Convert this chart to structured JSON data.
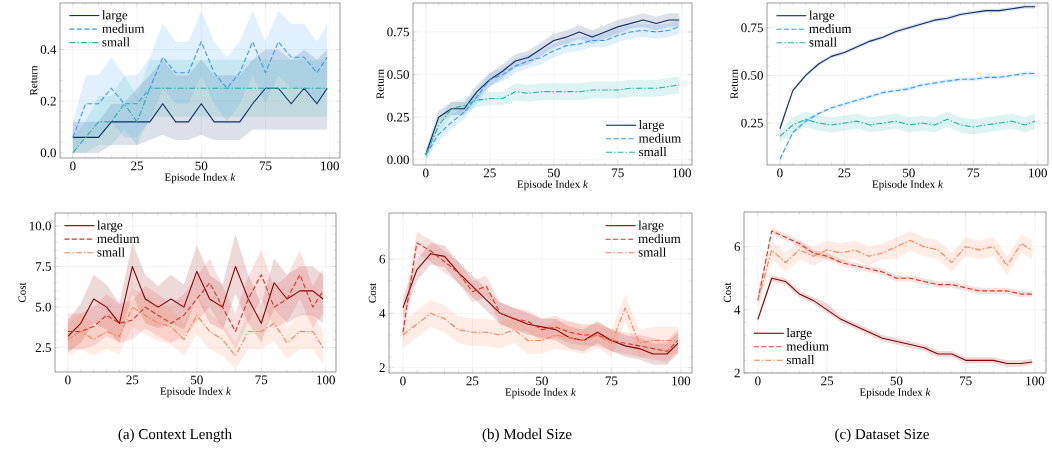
{
  "chart_data": [
    {
      "type": "line",
      "xlabel": "Episode Index *k*",
      "ylabel": "Return",
      "xlim": [
        -5,
        104
      ],
      "ylim": [
        -0.02,
        0.58
      ],
      "xticks": [
        0,
        25,
        50,
        75,
        100
      ],
      "yticks": [
        {
          "value": 0,
          "label": "0.0"
        },
        0.2,
        0.4
      ],
      "grid": true,
      "legend": "top left",
      "x": [
        0,
        5,
        10,
        15,
        20,
        25,
        30,
        35,
        40,
        45,
        50,
        55,
        60,
        65,
        70,
        75,
        80,
        85,
        90,
        95,
        99
      ],
      "series": [
        {
          "name": "large",
          "color": "#0d2f6b",
          "line_style": "solid",
          "values": [
            0.06,
            0.06,
            0.06,
            0.12,
            0.12,
            0.12,
            0.12,
            0.19,
            0.12,
            0.12,
            0.19,
            0.12,
            0.12,
            0.12,
            0.19,
            0.25,
            0.25,
            0.19,
            0.25,
            0.19,
            0.25
          ],
          "lower": [
            0,
            0,
            0,
            0.03,
            0.03,
            0.03,
            0.05,
            0.07,
            0.05,
            0.05,
            0.07,
            0.05,
            0.05,
            0.05,
            0.09,
            0.09,
            0.09,
            0.09,
            0.09,
            0.09,
            0.09
          ],
          "upper": [
            0.12,
            0.12,
            0.12,
            0.19,
            0.19,
            0.25,
            0.3,
            0.36,
            0.3,
            0.3,
            0.36,
            0.3,
            0.3,
            0.3,
            0.36,
            0.4,
            0.4,
            0.36,
            0.4,
            0.36,
            0.4
          ]
        },
        {
          "name": "medium",
          "color": "#3399ff",
          "line_style": "dashed",
          "values": [
            0.06,
            0.19,
            0.19,
            0.25,
            0.19,
            0.19,
            0.25,
            0.37,
            0.31,
            0.31,
            0.43,
            0.31,
            0.25,
            0.31,
            0.43,
            0.31,
            0.43,
            0.37,
            0.37,
            0.31,
            0.37
          ],
          "lower": [
            0,
            0.06,
            0.06,
            0.12,
            0.06,
            0.06,
            0.12,
            0.25,
            0.19,
            0.19,
            0.3,
            0.19,
            0.12,
            0.19,
            0.3,
            0.19,
            0.3,
            0.25,
            0.25,
            0.19,
            0.25
          ],
          "upper": [
            0.12,
            0.3,
            0.3,
            0.37,
            0.3,
            0.3,
            0.37,
            0.5,
            0.43,
            0.43,
            0.55,
            0.43,
            0.37,
            0.43,
            0.55,
            0.43,
            0.55,
            0.5,
            0.5,
            0.43,
            0.5
          ]
        },
        {
          "name": "small",
          "color": "#1fb5a8",
          "line_style": "dashdot",
          "values": [
            0,
            0.06,
            0.12,
            0.12,
            0.19,
            0.12,
            0.25,
            0.25,
            0.25,
            0.25,
            0.25,
            0.25,
            0.25,
            0.25,
            0.25,
            0.25,
            0.25,
            0.25,
            0.25,
            0.25,
            0.25
          ],
          "lower": [
            0,
            0,
            0.03,
            0.03,
            0.09,
            0.03,
            0.14,
            0.14,
            0.14,
            0.14,
            0.14,
            0.14,
            0.14,
            0.14,
            0.14,
            0.14,
            0.14,
            0.14,
            0.14,
            0.14,
            0.14
          ],
          "upper": [
            0.06,
            0.12,
            0.22,
            0.22,
            0.3,
            0.22,
            0.36,
            0.36,
            0.36,
            0.36,
            0.36,
            0.36,
            0.36,
            0.36,
            0.36,
            0.36,
            0.36,
            0.36,
            0.36,
            0.36,
            0.36
          ]
        }
      ]
    },
    {
      "type": "line",
      "xlabel": "Episode Index *k*",
      "ylabel": "Return",
      "xlim": [
        -5,
        104
      ],
      "ylim": [
        -0.03,
        0.92
      ],
      "xticks": [
        0,
        25,
        50,
        75,
        100
      ],
      "yticks": [
        {
          "value": 0,
          "label": "0.00"
        },
        0.25,
        {
          "value": 0.5,
          "label": "0.50"
        },
        0.75
      ],
      "grid": true,
      "legend": "bottom right",
      "x": [
        0,
        5,
        10,
        15,
        20,
        25,
        30,
        35,
        40,
        45,
        50,
        55,
        60,
        65,
        70,
        75,
        80,
        85,
        90,
        95,
        99
      ],
      "series": [
        {
          "name": "large",
          "color": "#0d2f6b",
          "line_style": "solid",
          "values": [
            0.03,
            0.25,
            0.3,
            0.3,
            0.4,
            0.47,
            0.52,
            0.58,
            0.6,
            0.65,
            0.7,
            0.72,
            0.75,
            0.72,
            0.75,
            0.78,
            0.8,
            0.82,
            0.8,
            0.82,
            0.82
          ],
          "lower": [
            0.0,
            0.21,
            0.26,
            0.26,
            0.36,
            0.43,
            0.48,
            0.54,
            0.56,
            0.61,
            0.66,
            0.68,
            0.71,
            0.68,
            0.71,
            0.74,
            0.77,
            0.78,
            0.76,
            0.78,
            0.78
          ],
          "upper": [
            0.06,
            0.29,
            0.34,
            0.34,
            0.44,
            0.51,
            0.56,
            0.62,
            0.64,
            0.69,
            0.74,
            0.76,
            0.79,
            0.76,
            0.79,
            0.82,
            0.84,
            0.86,
            0.84,
            0.86,
            0.86
          ]
        },
        {
          "name": "medium",
          "color": "#3399ff",
          "line_style": "dashed",
          "values": [
            0.03,
            0.15,
            0.22,
            0.28,
            0.37,
            0.47,
            0.5,
            0.55,
            0.58,
            0.6,
            0.64,
            0.67,
            0.68,
            0.7,
            0.7,
            0.73,
            0.75,
            0.76,
            0.75,
            0.76,
            0.78
          ],
          "lower": [
            0.0,
            0.11,
            0.18,
            0.24,
            0.33,
            0.43,
            0.46,
            0.51,
            0.54,
            0.56,
            0.6,
            0.63,
            0.64,
            0.66,
            0.66,
            0.69,
            0.71,
            0.72,
            0.71,
            0.72,
            0.74
          ],
          "upper": [
            0.06,
            0.19,
            0.26,
            0.32,
            0.41,
            0.51,
            0.54,
            0.59,
            0.62,
            0.64,
            0.68,
            0.71,
            0.72,
            0.74,
            0.74,
            0.77,
            0.79,
            0.8,
            0.79,
            0.8,
            0.82
          ]
        },
        {
          "name": "small",
          "color": "#1fb5a8",
          "line_style": "dashdot",
          "values": [
            0.03,
            0.2,
            0.3,
            0.32,
            0.35,
            0.36,
            0.36,
            0.4,
            0.39,
            0.4,
            0.4,
            0.4,
            0.4,
            0.41,
            0.41,
            0.41,
            0.42,
            0.42,
            0.42,
            0.43,
            0.44
          ],
          "lower": [
            0.0,
            0.16,
            0.26,
            0.28,
            0.31,
            0.32,
            0.32,
            0.35,
            0.34,
            0.35,
            0.35,
            0.35,
            0.35,
            0.36,
            0.36,
            0.36,
            0.37,
            0.37,
            0.37,
            0.38,
            0.39
          ],
          "upper": [
            0.06,
            0.24,
            0.34,
            0.36,
            0.39,
            0.4,
            0.4,
            0.45,
            0.44,
            0.45,
            0.45,
            0.45,
            0.45,
            0.46,
            0.46,
            0.46,
            0.47,
            0.47,
            0.47,
            0.48,
            0.49
          ]
        }
      ]
    },
    {
      "type": "line",
      "xlabel": "Episode Index *k*",
      "ylabel": "Return",
      "xlim": [
        -5,
        104
      ],
      "ylim": [
        0.03,
        0.88
      ],
      "xticks": [
        0,
        25,
        50,
        75,
        100
      ],
      "yticks": [
        0.25,
        {
          "value": 0.5,
          "label": "0.50"
        },
        0.75
      ],
      "grid": true,
      "legend": "top left",
      "x": [
        0,
        5,
        10,
        15,
        20,
        25,
        30,
        35,
        40,
        45,
        50,
        55,
        60,
        65,
        70,
        75,
        80,
        85,
        90,
        95,
        99
      ],
      "series": [
        {
          "name": "large",
          "color": "#0d2f6b",
          "line_style": "solid",
          "values": [
            0.22,
            0.42,
            0.5,
            0.56,
            0.6,
            0.62,
            0.65,
            0.68,
            0.7,
            0.73,
            0.75,
            0.77,
            0.79,
            0.8,
            0.82,
            0.83,
            0.84,
            0.84,
            0.85,
            0.86,
            0.86
          ],
          "lower": [
            0.2,
            0.41,
            0.49,
            0.55,
            0.59,
            0.61,
            0.64,
            0.67,
            0.69,
            0.72,
            0.74,
            0.76,
            0.78,
            0.79,
            0.81,
            0.82,
            0.83,
            0.83,
            0.84,
            0.85,
            0.85
          ],
          "upper": [
            0.24,
            0.43,
            0.51,
            0.57,
            0.61,
            0.63,
            0.66,
            0.69,
            0.71,
            0.74,
            0.76,
            0.78,
            0.8,
            0.81,
            0.83,
            0.84,
            0.85,
            0.85,
            0.86,
            0.87,
            0.87
          ]
        },
        {
          "name": "medium",
          "color": "#3399ff",
          "line_style": "dashed",
          "values": [
            0.06,
            0.2,
            0.26,
            0.3,
            0.33,
            0.35,
            0.37,
            0.39,
            0.41,
            0.42,
            0.43,
            0.45,
            0.46,
            0.47,
            0.48,
            0.48,
            0.49,
            0.49,
            0.5,
            0.51,
            0.51
          ],
          "lower": [
            0.05,
            0.19,
            0.25,
            0.29,
            0.32,
            0.34,
            0.36,
            0.38,
            0.4,
            0.41,
            0.42,
            0.44,
            0.45,
            0.46,
            0.47,
            0.47,
            0.48,
            0.48,
            0.49,
            0.5,
            0.5
          ],
          "upper": [
            0.07,
            0.21,
            0.27,
            0.31,
            0.34,
            0.36,
            0.38,
            0.4,
            0.42,
            0.43,
            0.44,
            0.46,
            0.47,
            0.48,
            0.49,
            0.49,
            0.5,
            0.5,
            0.51,
            0.52,
            0.52
          ]
        },
        {
          "name": "small",
          "color": "#1fb5a8",
          "line_style": "dashdot",
          "values": [
            0.18,
            0.24,
            0.27,
            0.25,
            0.24,
            0.25,
            0.26,
            0.24,
            0.25,
            0.26,
            0.24,
            0.25,
            0.24,
            0.27,
            0.24,
            0.23,
            0.24,
            0.25,
            0.26,
            0.24,
            0.26
          ],
          "lower": [
            0.15,
            0.2,
            0.23,
            0.21,
            0.2,
            0.21,
            0.22,
            0.2,
            0.21,
            0.22,
            0.2,
            0.21,
            0.2,
            0.23,
            0.2,
            0.19,
            0.2,
            0.21,
            0.22,
            0.2,
            0.22
          ],
          "upper": [
            0.21,
            0.28,
            0.31,
            0.29,
            0.28,
            0.29,
            0.3,
            0.28,
            0.29,
            0.3,
            0.28,
            0.29,
            0.28,
            0.31,
            0.28,
            0.27,
            0.28,
            0.29,
            0.3,
            0.28,
            0.3
          ]
        }
      ]
    },
    {
      "type": "line",
      "xlabel": "Episode Index *k*",
      "ylabel": "Cost",
      "xlim": [
        -5,
        104
      ],
      "ylim": [
        1.0,
        10.8
      ],
      "xticks": [
        0,
        25,
        50,
        75,
        100
      ],
      "yticks": [
        2.5,
        {
          "value": 5,
          "label": "5.0"
        },
        7.5,
        {
          "value": 10,
          "label": "10.0"
        }
      ],
      "grid": true,
      "legend": "top left",
      "annotations": [
        "(a) Context Length"
      ],
      "x": [
        0,
        5,
        10,
        15,
        20,
        25,
        30,
        35,
        40,
        45,
        50,
        55,
        60,
        65,
        70,
        75,
        80,
        85,
        90,
        95,
        99
      ],
      "series": [
        {
          "name": "large",
          "color": "#8b0000",
          "line_style": "solid",
          "values": [
            3.2,
            4.0,
            5.5,
            5.0,
            4.0,
            7.5,
            5.5,
            5.0,
            5.5,
            5.0,
            7.2,
            5.5,
            5.0,
            7.5,
            5.5,
            4.0,
            6.5,
            5.5,
            6.0,
            6.0,
            5.5
          ],
          "lower": [
            2.2,
            2.8,
            4.0,
            3.6,
            2.8,
            5.8,
            4.0,
            3.7,
            4.0,
            3.6,
            5.6,
            4.0,
            3.6,
            5.8,
            4.0,
            2.8,
            4.9,
            4.0,
            4.5,
            4.5,
            4.0
          ],
          "upper": [
            4.2,
            5.2,
            7.0,
            6.4,
            5.2,
            9.0,
            7.0,
            6.3,
            7.0,
            6.4,
            8.8,
            7.0,
            6.4,
            9.5,
            7.0,
            5.2,
            8.0,
            7.0,
            7.5,
            7.5,
            7.0
          ]
        },
        {
          "name": "medium",
          "color": "#e03020",
          "line_style": "dashed",
          "values": [
            3.5,
            3.5,
            3.8,
            4.5,
            4.0,
            4.2,
            5.0,
            4.5,
            4.0,
            4.5,
            5.5,
            6.5,
            5.0,
            3.5,
            5.5,
            7.0,
            5.0,
            5.5,
            7.0,
            5.0,
            6.0
          ],
          "lower": [
            2.4,
            2.4,
            2.6,
            3.2,
            2.8,
            3.0,
            3.7,
            3.2,
            2.8,
            3.2,
            4.1,
            5.0,
            3.7,
            2.4,
            4.1,
            5.5,
            3.7,
            4.1,
            5.5,
            3.7,
            4.6
          ],
          "upper": [
            4.6,
            4.6,
            5.0,
            5.8,
            5.2,
            5.4,
            6.3,
            5.8,
            5.2,
            5.8,
            6.9,
            8.0,
            6.3,
            4.6,
            6.9,
            8.5,
            6.3,
            6.9,
            8.5,
            6.3,
            7.4
          ]
        },
        {
          "name": "small",
          "color": "#ff7f50",
          "line_style": "dashdot",
          "values": [
            3.0,
            3.5,
            3.0,
            3.5,
            3.2,
            5.0,
            4.5,
            4.0,
            3.8,
            3.0,
            4.5,
            3.5,
            3.0,
            2.0,
            3.5,
            3.5,
            4.0,
            2.8,
            3.5,
            3.5,
            2.5
          ],
          "lower": [
            2.0,
            2.4,
            2.0,
            2.4,
            2.1,
            3.8,
            3.3,
            2.9,
            2.7,
            2.0,
            3.3,
            2.4,
            2.0,
            1.2,
            2.4,
            2.4,
            2.9,
            1.8,
            2.4,
            2.4,
            1.5
          ],
          "upper": [
            4.0,
            4.6,
            4.0,
            4.6,
            4.3,
            6.2,
            5.7,
            5.1,
            4.9,
            4.0,
            5.7,
            4.6,
            4.0,
            2.8,
            4.6,
            4.6,
            5.1,
            3.8,
            4.6,
            4.6,
            3.5
          ]
        }
      ]
    },
    {
      "type": "line",
      "xlabel": "Episode Index *k*",
      "ylabel": "Cost",
      "xlim": [
        -5,
        104
      ],
      "ylim": [
        1.8,
        7.7
      ],
      "xticks": [
        0,
        25,
        50,
        75,
        100
      ],
      "yticks": [
        2,
        4,
        6
      ],
      "grid": true,
      "legend": "top right",
      "annotations": [
        "(b) Model Size"
      ],
      "x": [
        0,
        5,
        10,
        15,
        20,
        25,
        30,
        35,
        40,
        45,
        50,
        55,
        60,
        65,
        70,
        75,
        80,
        85,
        90,
        95,
        99
      ],
      "series": [
        {
          "name": "large",
          "color": "#8b0000",
          "line_style": "solid",
          "values": [
            4.2,
            5.6,
            6.2,
            6.1,
            5.5,
            5.0,
            4.5,
            4.0,
            3.8,
            3.6,
            3.5,
            3.4,
            3.1,
            3.0,
            3.3,
            3.0,
            2.8,
            2.7,
            2.5,
            2.5,
            2.9
          ],
          "lower": [
            3.8,
            5.2,
            5.8,
            5.7,
            5.1,
            4.6,
            4.1,
            3.6,
            3.4,
            3.2,
            3.1,
            3.0,
            2.7,
            2.6,
            2.9,
            2.6,
            2.4,
            2.3,
            2.1,
            2.1,
            2.5
          ],
          "upper": [
            4.6,
            6.0,
            6.6,
            6.5,
            5.9,
            5.4,
            4.9,
            4.4,
            4.2,
            4.0,
            3.8,
            3.8,
            3.5,
            3.4,
            3.7,
            3.4,
            3.2,
            3.1,
            2.9,
            2.9,
            3.3
          ]
        },
        {
          "name": "medium",
          "color": "#e03020",
          "line_style": "dashed",
          "values": [
            3.3,
            6.6,
            6.3,
            5.9,
            5.5,
            4.8,
            5.0,
            4.0,
            3.8,
            3.7,
            3.4,
            3.5,
            3.3,
            3.2,
            3.2,
            3.0,
            2.9,
            2.8,
            2.7,
            2.6,
            3.0
          ],
          "lower": [
            2.9,
            6.2,
            5.9,
            5.5,
            5.1,
            4.4,
            4.6,
            3.6,
            3.4,
            3.3,
            3.0,
            3.1,
            2.9,
            2.8,
            2.8,
            2.6,
            2.5,
            2.4,
            2.3,
            2.2,
            2.6
          ],
          "upper": [
            3.7,
            7.0,
            6.7,
            6.3,
            5.9,
            5.2,
            5.4,
            4.4,
            4.2,
            4.1,
            3.8,
            3.9,
            3.7,
            3.6,
            3.6,
            3.4,
            3.3,
            3.2,
            3.1,
            3.0,
            3.4
          ]
        },
        {
          "name": "small",
          "color": "#ff7f50",
          "line_style": "dashdot",
          "values": [
            3.2,
            3.6,
            4.0,
            3.8,
            3.4,
            3.3,
            3.3,
            3.2,
            3.4,
            3.0,
            3.0,
            3.2,
            3.1,
            3.0,
            3.2,
            2.9,
            4.2,
            2.9,
            3.0,
            3.0,
            3.0
          ],
          "lower": [
            2.7,
            3.1,
            3.5,
            3.3,
            2.9,
            2.8,
            2.8,
            2.7,
            2.9,
            2.5,
            2.5,
            2.7,
            2.6,
            2.5,
            2.7,
            2.4,
            3.7,
            2.4,
            2.5,
            2.5,
            2.5
          ],
          "upper": [
            3.7,
            4.1,
            4.5,
            4.3,
            3.9,
            3.8,
            3.8,
            3.7,
            3.9,
            3.5,
            3.5,
            3.7,
            3.7,
            3.5,
            3.7,
            3.4,
            4.7,
            3.4,
            3.5,
            3.5,
            3.5
          ]
        }
      ]
    },
    {
      "type": "line",
      "xlabel": "Episode Index *k*",
      "ylabel": "Cost",
      "xlim": [
        -5,
        104
      ],
      "ylim": [
        2.0,
        7.1
      ],
      "xticks": [
        0,
        25,
        50,
        75,
        100
      ],
      "yticks": [
        2,
        4,
        6
      ],
      "grid": true,
      "legend": "bottom left",
      "annotations": [
        "(c) Dataset Size"
      ],
      "x": [
        0,
        5,
        10,
        15,
        20,
        25,
        30,
        35,
        40,
        45,
        50,
        55,
        60,
        65,
        70,
        75,
        80,
        85,
        90,
        95,
        99
      ],
      "series": [
        {
          "name": "large",
          "color": "#8b0000",
          "line_style": "solid",
          "values": [
            3.7,
            5.0,
            4.9,
            4.5,
            4.3,
            4.0,
            3.7,
            3.5,
            3.3,
            3.1,
            3.0,
            2.9,
            2.8,
            2.6,
            2.6,
            2.4,
            2.4,
            2.4,
            2.3,
            2.3,
            2.35
          ],
          "lower": [
            3.6,
            4.9,
            4.8,
            4.4,
            4.2,
            3.9,
            3.6,
            3.4,
            3.2,
            3.0,
            2.9,
            2.8,
            2.7,
            2.5,
            2.5,
            2.3,
            2.3,
            2.3,
            2.2,
            2.2,
            2.25
          ],
          "upper": [
            3.8,
            5.1,
            5.0,
            4.6,
            4.4,
            4.2,
            3.8,
            3.6,
            3.4,
            3.2,
            3.1,
            3.0,
            2.9,
            2.7,
            2.7,
            2.5,
            2.5,
            2.5,
            2.4,
            2.4,
            2.45
          ]
        },
        {
          "name": "medium",
          "color": "#e03020",
          "line_style": "dashed",
          "values": [
            4.3,
            6.5,
            6.3,
            6.1,
            5.8,
            5.7,
            5.5,
            5.4,
            5.3,
            5.2,
            5.0,
            5.0,
            4.9,
            4.8,
            4.8,
            4.7,
            4.6,
            4.6,
            4.6,
            4.5,
            4.5
          ],
          "lower": [
            4.2,
            6.4,
            6.2,
            6.0,
            5.7,
            5.6,
            5.4,
            5.3,
            5.2,
            5.1,
            4.9,
            4.9,
            4.8,
            4.7,
            4.7,
            4.6,
            4.5,
            4.5,
            4.5,
            4.4,
            4.4
          ],
          "upper": [
            4.4,
            6.6,
            6.4,
            6.2,
            5.9,
            5.8,
            5.6,
            5.5,
            5.4,
            5.3,
            5.1,
            5.1,
            5.0,
            4.9,
            4.9,
            4.8,
            4.7,
            4.7,
            4.7,
            4.6,
            4.6
          ]
        },
        {
          "name": "small",
          "color": "#ff7f50",
          "line_style": "dashdot",
          "values": [
            4.3,
            5.9,
            5.5,
            5.9,
            5.7,
            5.9,
            5.8,
            5.9,
            5.7,
            5.8,
            6.0,
            6.2,
            6.0,
            5.9,
            5.5,
            6.0,
            5.9,
            6.0,
            5.4,
            6.1,
            5.9
          ],
          "lower": [
            4.0,
            5.6,
            5.2,
            5.6,
            5.4,
            5.6,
            5.5,
            5.6,
            5.4,
            5.6,
            5.6,
            5.9,
            5.7,
            5.6,
            5.2,
            5.7,
            5.6,
            5.7,
            5.1,
            5.8,
            5.6
          ],
          "upper": [
            4.6,
            6.2,
            5.8,
            6.2,
            6.0,
            6.2,
            6.1,
            6.2,
            6.0,
            6.1,
            6.3,
            6.5,
            6.3,
            6.2,
            5.8,
            6.3,
            6.2,
            6.3,
            5.7,
            6.4,
            6.2
          ]
        }
      ]
    }
  ]
}
